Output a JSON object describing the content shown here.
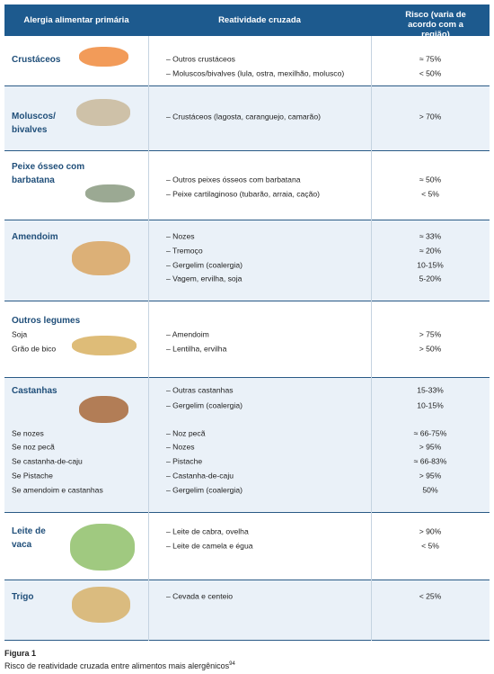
{
  "header": {
    "allergy": "Alergia alimentar primária",
    "reactivity": "Reatividade cruzada",
    "risk": "Risco (varia de acordo com a região)"
  },
  "rows": [
    {
      "allergen": "Crustáceos",
      "subitems": [],
      "reactivity": [
        "– Outros crustáceos",
        "– Moluscos/bivalves (lula, ostra, mexilhão, molusco)"
      ],
      "risk": [
        "≈ 75%",
        "<  50%"
      ]
    },
    {
      "allergen": "Moluscos/ bivalves",
      "subitems": [],
      "reactivity": [
        "– Crustáceos (lagosta, caranguejo, camarão)"
      ],
      "risk": [
        "> 70%"
      ]
    },
    {
      "allergen": "Peixe ósseo com barbatana",
      "subitems": [],
      "reactivity": [
        "– Outros peixes ósseos com barbatana",
        "– Peixe cartilaginoso (tubarão, arraia, cação)"
      ],
      "risk": [
        "≈ 50%",
        "< 5%"
      ]
    },
    {
      "allergen": "Amendoim",
      "subitems": [],
      "reactivity": [
        "– Nozes",
        "– Tremoço",
        "– Gergelim (coalergia)",
        "– Vagem, ervilha, soja"
      ],
      "risk": [
        "≈ 33%",
        "≈ 20%",
        "10-15%",
        "5-20%"
      ]
    },
    {
      "allergen": "Outros legumes",
      "subitems": [
        "Soja",
        "Grão de bico"
      ],
      "reactivity": [
        "– Amendoim",
        "– Lentilha, ervilha"
      ],
      "risk": [
        "> 75%",
        "> 50%"
      ]
    },
    {
      "allergen": "Castanhas",
      "subitems": [
        "Se nozes",
        "Se noz pecã",
        "Se castanha-de-caju",
        "Se Pistache",
        "Se amendoim e castanhas"
      ],
      "reactivity": [
        "– Outras castanhas",
        "– Gergelim (coalergia)",
        "– Noz pecã",
        "– Nozes",
        "– Pistache",
        "– Castanha-de-caju",
        "– Gergelim (coalergia)"
      ],
      "risk": [
        "15-33%",
        "10-15%",
        "≈ 66-75%",
        "> 95%",
        "≈ 66-83%",
        "> 95%",
        "50%"
      ]
    },
    {
      "allergen": "Leite de vaca",
      "subitems": [],
      "reactivity": [
        "– Leite de cabra, ovelha",
        "– Leite de camela e égua"
      ],
      "risk": [
        "> 90%",
        "< 5%"
      ]
    },
    {
      "allergen": "Trigo",
      "subitems": [],
      "reactivity": [
        "– Cevada e centeio"
      ],
      "risk": [
        "< 25%"
      ]
    }
  ],
  "caption": {
    "title": "Figura 1",
    "text": "Risco de reatividade cruzada entre alimentos mais alergênicos",
    "reference": "94"
  }
}
